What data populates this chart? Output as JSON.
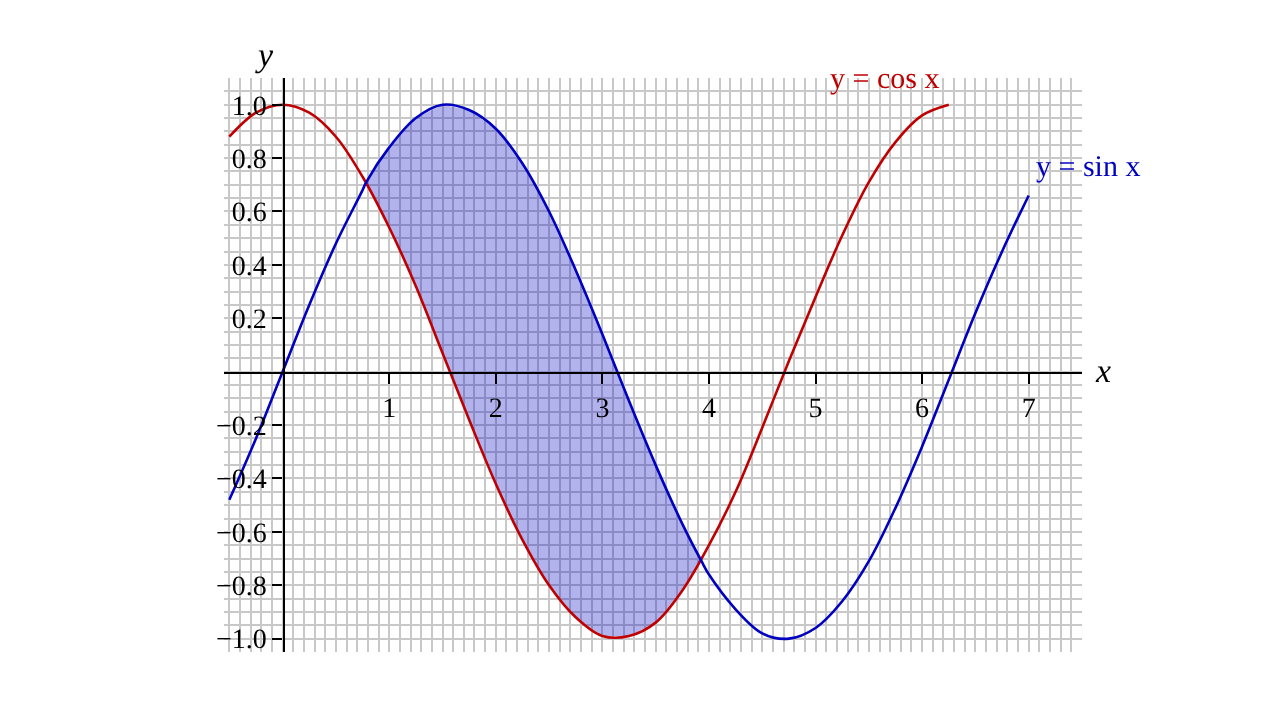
{
  "chart_data": {
    "type": "line",
    "xlabel": "x",
    "ylabel": "y",
    "xlim": [
      -0.55,
      7.5
    ],
    "ylim": [
      -1.05,
      1.1
    ],
    "xticks": [
      1,
      2,
      3,
      4,
      5,
      6,
      7
    ],
    "yticks": [
      {
        "value": -1,
        "label": "−1.0"
      },
      {
        "value": -0.8,
        "label": "−0.8"
      },
      {
        "value": -0.6,
        "label": "−0.6"
      },
      {
        "value": -0.4,
        "label": "−0.4"
      },
      {
        "value": -0.2,
        "label": "−0.2"
      },
      0.2,
      0.4,
      0.6,
      0.8,
      {
        "value": 1,
        "label": "1.0"
      }
    ],
    "grid": true,
    "legend": false,
    "marker": "none",
    "series": [
      {
        "name": "y = cos x",
        "color": "#c00000",
        "x": [
          -0.5,
          -0.25,
          0,
          0.25,
          0.5,
          0.75,
          1,
          1.25,
          1.5,
          1.75,
          2,
          2.25,
          2.5,
          2.75,
          3,
          3.25,
          3.5,
          3.75,
          4,
          4.25,
          4.5,
          4.75,
          5,
          5.25,
          5.5,
          5.75,
          6,
          6.25
        ],
        "values": [
          0.88,
          0.97,
          1.0,
          0.97,
          0.88,
          0.73,
          0.54,
          0.32,
          0.07,
          -0.18,
          -0.42,
          -0.63,
          -0.8,
          -0.92,
          -0.99,
          -0.99,
          -0.94,
          -0.82,
          -0.65,
          -0.45,
          -0.21,
          0.04,
          0.28,
          0.51,
          0.71,
          0.86,
          0.96,
          1.0
        ]
      },
      {
        "name": "y = sin x",
        "color": "#0000c0",
        "x": [
          -0.5,
          -0.25,
          0,
          0.25,
          0.5,
          0.75,
          0.785,
          1,
          1.25,
          1.5,
          1.75,
          2,
          2.25,
          2.5,
          2.75,
          3,
          3.25,
          3.5,
          3.75,
          3.93,
          4,
          4.25,
          4.5,
          4.75,
          5,
          5.25,
          5.5,
          5.75,
          6,
          6.25,
          6.5,
          6.75,
          7
        ],
        "values": [
          -0.48,
          -0.25,
          0,
          0.25,
          0.48,
          0.68,
          0.71,
          0.84,
          0.95,
          1.0,
          0.98,
          0.91,
          0.78,
          0.6,
          0.38,
          0.14,
          -0.11,
          -0.35,
          -0.57,
          -0.71,
          -0.76,
          -0.89,
          -0.98,
          -1.0,
          -0.96,
          -0.86,
          -0.71,
          -0.51,
          -0.28,
          -0.03,
          0.22,
          0.45,
          0.66
        ],
        "upper": [
          null,
          null,
          null,
          null,
          null,
          null,
          0.71,
          0.84,
          0.95,
          1.0,
          0.98,
          0.91,
          0.78,
          0.6,
          0.38,
          0.14,
          -0.11,
          -0.35,
          -0.57,
          -0.71,
          null,
          null,
          null,
          null,
          null,
          null,
          null,
          null,
          null,
          null,
          null,
          null,
          null
        ],
        "lower": [
          null,
          null,
          null,
          null,
          null,
          null,
          0.71,
          0.54,
          0.32,
          0.07,
          -0.18,
          -0.42,
          -0.63,
          -0.8,
          -0.92,
          -0.99,
          -0.99,
          -0.94,
          -0.82,
          -0.71,
          null,
          null,
          null,
          null,
          null,
          null,
          null,
          null,
          null,
          null,
          null,
          null,
          null
        ]
      }
    ]
  }
}
